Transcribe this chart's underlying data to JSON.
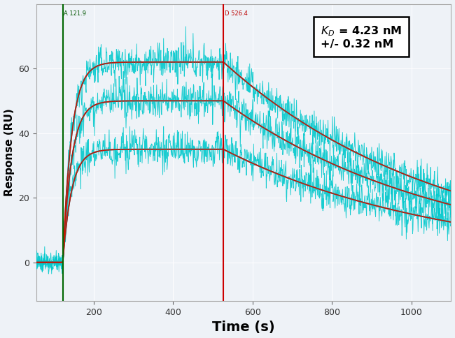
{
  "xlabel": "Time (s)",
  "ylabel": "Response (RU)",
  "xlim": [
    55,
    1100
  ],
  "ylim": [
    -12,
    80
  ],
  "yticks": [
    0,
    20,
    40,
    60
  ],
  "xticks": [
    200,
    400,
    600,
    800,
    1000
  ],
  "association_start": 121.9,
  "dissociation_start": 526.4,
  "annotation_assoc": "A 121.9",
  "annotation_dissoc": "D 526.4",
  "bg_color": "#eef2f7",
  "cyan_color": "#00c8cc",
  "red_color": "#cc1100",
  "dark_color": "#222222",
  "green_vline": "#006600",
  "red_vline": "#cc0000",
  "Rmax_values": [
    62,
    50,
    35
  ],
  "ka": 0.045,
  "kd_rate": 0.0018,
  "noise_amp": 2.8,
  "baseline_noise": 1.5
}
